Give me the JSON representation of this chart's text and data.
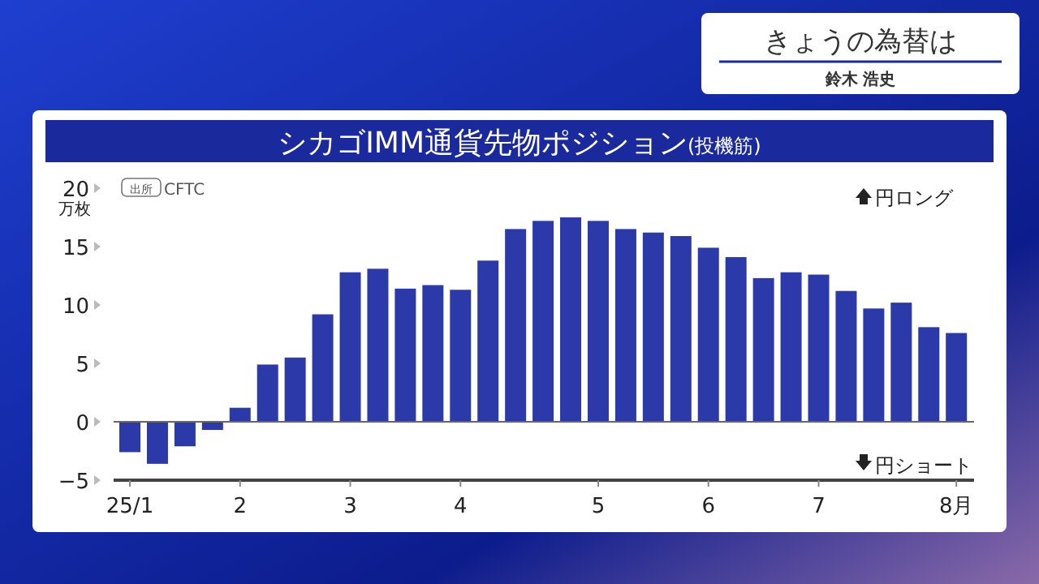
{
  "chart_data": {
    "type": "bar",
    "title": "シカゴIMM通貨先物ポジション",
    "subtitle": "(投機筋)",
    "ylabel": "万枚",
    "categories": [
      "25/1",
      null,
      null,
      null,
      "2",
      null,
      null,
      null,
      "3",
      null,
      null,
      null,
      "4",
      null,
      null,
      null,
      null,
      "5",
      null,
      null,
      null,
      "6",
      null,
      null,
      null,
      "7",
      null,
      null,
      null,
      null,
      "8月"
    ],
    "values": [
      -2.6,
      -3.6,
      -2.1,
      -0.7,
      1.2,
      4.9,
      5.5,
      9.2,
      12.8,
      13.1,
      11.4,
      11.7,
      11.3,
      13.8,
      16.5,
      17.2,
      17.5,
      17.2,
      16.5,
      16.2,
      15.9,
      14.9,
      14.1,
      12.3,
      12.8,
      12.6,
      11.2,
      9.7,
      10.2,
      8.1,
      7.6
    ],
    "color": "#2b3aa8",
    "ylim": [
      -5,
      20
    ],
    "yticks": [
      -5,
      0,
      5,
      10,
      15,
      20
    ],
    "annotations": [
      "出所 CFTC",
      "円ロング",
      "円ショート",
      "きょうの為替は",
      "鈴木 浩史"
    ]
  }
}
